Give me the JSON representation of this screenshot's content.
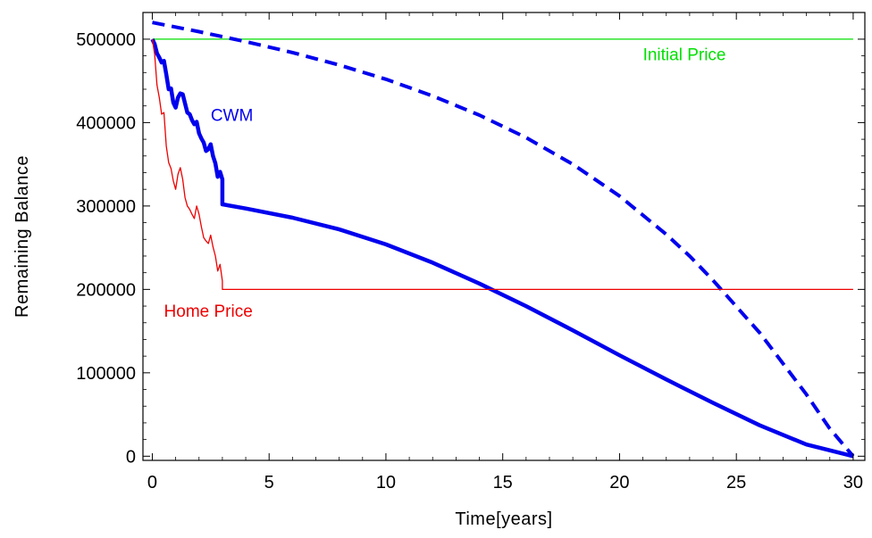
{
  "chart_data": {
    "type": "line",
    "xlabel": "Time[years]",
    "ylabel": "Remaining  Balance",
    "xlim": [
      -0.4,
      30.5
    ],
    "ylim": [
      -5000,
      532000
    ],
    "xticks": [
      0,
      5,
      10,
      15,
      20,
      25,
      30
    ],
    "yticks": [
      0,
      100000,
      200000,
      300000,
      400000,
      500000
    ],
    "xtick_labels": [
      "0",
      "5",
      "10",
      "15",
      "20",
      "25",
      "30"
    ],
    "ytick_labels": [
      "0",
      "100000",
      "200000",
      "300000",
      "400000",
      "500000"
    ],
    "grid": false,
    "legend": "none",
    "series": [
      {
        "style": "thin-solid",
        "color": "#00e000",
        "x": [
          0,
          30
        ],
        "y": [
          500000,
          500000
        ]
      },
      {
        "style": "dashed",
        "color": "#0000ee",
        "x": [
          0,
          2,
          4,
          6,
          8,
          10,
          12,
          14,
          16,
          18,
          20,
          22,
          23,
          24,
          26,
          28,
          29,
          30
        ],
        "y": [
          520000,
          509000,
          497000,
          484000,
          469000,
          452000,
          432000,
          409000,
          382000,
          350000,
          312000,
          266000,
          240000,
          211000,
          148000,
          74000,
          33000,
          0
        ]
      },
      {
        "style": "thick-solid",
        "color": "#0000ee",
        "x": [
          0,
          0.1,
          0.2,
          0.3,
          0.4,
          0.5,
          0.6,
          0.7,
          0.8,
          0.9,
          1.0,
          1.1,
          1.2,
          1.3,
          1.4,
          1.5,
          1.6,
          1.7,
          1.8,
          1.9,
          2.0,
          2.1,
          2.2,
          2.3,
          2.4,
          2.5,
          2.6,
          2.7,
          2.8,
          2.9,
          3.0,
          3.0,
          4,
          6,
          8,
          10,
          12,
          14,
          16,
          18,
          20,
          22,
          24,
          26,
          28,
          30
        ],
        "y": [
          500000,
          494000,
          483000,
          478000,
          472000,
          474000,
          458000,
          440000,
          441000,
          424000,
          418000,
          430000,
          435000,
          434000,
          423000,
          412000,
          410000,
          403000,
          398000,
          401000,
          387000,
          381000,
          376000,
          366000,
          368000,
          374000,
          360000,
          351000,
          335000,
          341000,
          332000,
          302000,
          297000,
          286000,
          272000,
          254000,
          232000,
          207000,
          180000,
          151000,
          121000,
          92000,
          64000,
          37000,
          14000,
          0
        ]
      },
      {
        "style": "thin-solid",
        "color": "#ee0000",
        "x": [
          0,
          0.1,
          0.2,
          0.3,
          0.4,
          0.5,
          0.6,
          0.7,
          0.8,
          0.9,
          1.0,
          1.1,
          1.2,
          1.3,
          1.4,
          1.5,
          1.6,
          1.7,
          1.8,
          1.9,
          2.0,
          2.1,
          2.2,
          2.3,
          2.4,
          2.5,
          2.6,
          2.7,
          2.8,
          2.9,
          3.0,
          3.0,
          30
        ],
        "y": [
          500000,
          482000,
          445000,
          430000,
          410000,
          412000,
          372000,
          352000,
          345000,
          330000,
          320000,
          338000,
          346000,
          332000,
          310000,
          300000,
          296000,
          290000,
          285000,
          300000,
          290000,
          275000,
          262000,
          258000,
          255000,
          265000,
          251000,
          240000,
          222000,
          230000,
          210000,
          200000,
          200000
        ]
      }
    ],
    "annotations": [
      {
        "text": "Initial Price",
        "color": "#00e000",
        "x": 21,
        "y": 475000,
        "anchor": "start"
      },
      {
        "text": "CWM",
        "color": "#0000ee",
        "x": 2.5,
        "y": 402000,
        "anchor": "start"
      },
      {
        "text": "Home Price",
        "color": "#ee0000",
        "x": 0.5,
        "y": 167000,
        "anchor": "start"
      }
    ]
  }
}
